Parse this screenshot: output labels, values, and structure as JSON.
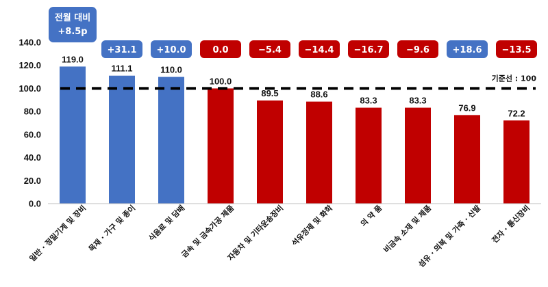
{
  "chart_data": {
    "type": "bar",
    "categories": [
      "일반 · 정밀기계 및 장비",
      "목재 · 가구 및 종이",
      "식음료 및 담배",
      "금속 및 금속가공 제품",
      "자동차 및 기타운송장비",
      "석유정제 및 화학",
      "의 약 품",
      "비금속 소재 및 제품",
      "섬유 · 의복 및 가죽 · 신발",
      "전자 · 통신장비"
    ],
    "values": [
      119.0,
      111.1,
      110.0,
      100.0,
      89.5,
      88.6,
      83.3,
      83.3,
      76.9,
      72.2
    ],
    "value_labels": [
      "119.0",
      "111.1",
      "110.0",
      "100.0",
      "89.5",
      "88.6",
      "83.3",
      "83.3",
      "76.9",
      "72.2"
    ],
    "bar_colors": [
      "#4472C4",
      "#4472C4",
      "#4472C4",
      "#C00000",
      "#C00000",
      "#C00000",
      "#C00000",
      "#C00000",
      "#C00000",
      "#C00000"
    ],
    "change_badges": [
      {
        "lines": [
          "전월 대비",
          "+8.5p"
        ],
        "color": "#4472C4"
      },
      {
        "lines": [
          "+31.1"
        ],
        "color": "#4472C4"
      },
      {
        "lines": [
          "+10.0"
        ],
        "color": "#4472C4"
      },
      {
        "lines": [
          "0.0"
        ],
        "color": "#C00000"
      },
      {
        "lines": [
          "−5.4"
        ],
        "color": "#C00000"
      },
      {
        "lines": [
          "−14.4"
        ],
        "color": "#C00000"
      },
      {
        "lines": [
          "−16.7"
        ],
        "color": "#C00000"
      },
      {
        "lines": [
          "−9.6"
        ],
        "color": "#C00000"
      },
      {
        "lines": [
          "+18.6"
        ],
        "color": "#4472C4"
      },
      {
        "lines": [
          "−13.5"
        ],
        "color": "#C00000"
      }
    ],
    "y_ticks": [
      "0.0",
      "20.0",
      "40.0",
      "60.0",
      "80.0",
      "100.0",
      "120.0",
      "140.0"
    ],
    "ylim": [
      0,
      140
    ],
    "reference_line": {
      "value": 100,
      "label": "기준선 : 100"
    },
    "grid": false,
    "legend": "none"
  }
}
